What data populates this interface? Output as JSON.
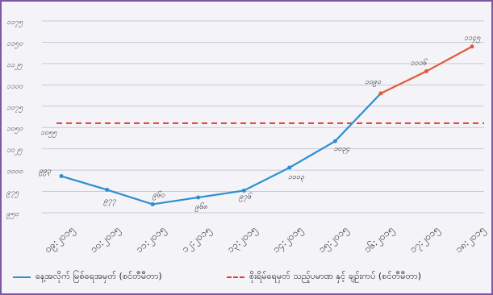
{
  "title": "[ ]",
  "colors": {
    "actual": "#2b8fd0",
    "forecast": "#e05a3a",
    "threshold": "#e33b2e",
    "grid": "#c9c9d6",
    "border": "#7b57a6"
  },
  "chart_data": {
    "type": "line",
    "title": "",
    "xlabel": "",
    "ylabel": "",
    "categories": [
      "၀၉:၂၀၁၅",
      "၁၀:၂၀၁၅",
      "၁၁:၂၀၁၅",
      "၁၂:၂၀၁၅",
      "၁၃:၂၀၁၅",
      "၁၄:၂၀၁၅",
      "၁၅:၂၀၁၅",
      "၁၆:၂၀၁၅",
      "၁၇:၂၀၁၅",
      "၁၈:၂၀၁၅"
    ],
    "y_ticks": [
      "၁၁၇၅",
      "၁၁၅၀",
      "၁၁၂၅",
      "၁၁၀၀",
      "၁၀၇၅",
      "၁၀၅၀",
      "၁၀၂၅",
      "၁၀၀၀",
      "၉၇၅",
      "၉၅၀"
    ],
    "ylim": [
      950,
      1175
    ],
    "grid": true,
    "legend_position": "bottom",
    "series": [
      {
        "name": "နေ့အလိုက် မြစ်ရေအမှတ် (စင်တီမီတာ)",
        "style": "solid",
        "color": "#2b8fd0",
        "values": [
          993,
          977,
          960,
          968,
          976,
          1003,
          1034,
          1090,
          1116,
          1145
        ],
        "labels": [
          "၉၉၃",
          "၉၇၇",
          "၉၆၀",
          "၉၆၈",
          "၉၇၆",
          "၁၀၀၃",
          "၁၀၃၄",
          "၁၀၉၀",
          "၁၁၁၆",
          "၁၁၄၅"
        ]
      },
      {
        "name": "စိုးရိမ်ရေမှတ် သည့်ပမာဏ နှင့် ချဉ်းကပ် (စင်တီမီတာ)",
        "style": "dashed",
        "color": "#e33b2e",
        "values": [
          1055,
          1055,
          1055,
          1055,
          1055,
          1055,
          1055,
          1055,
          1055,
          1055
        ],
        "labels": [
          "၁၀၅၅"
        ]
      }
    ]
  }
}
